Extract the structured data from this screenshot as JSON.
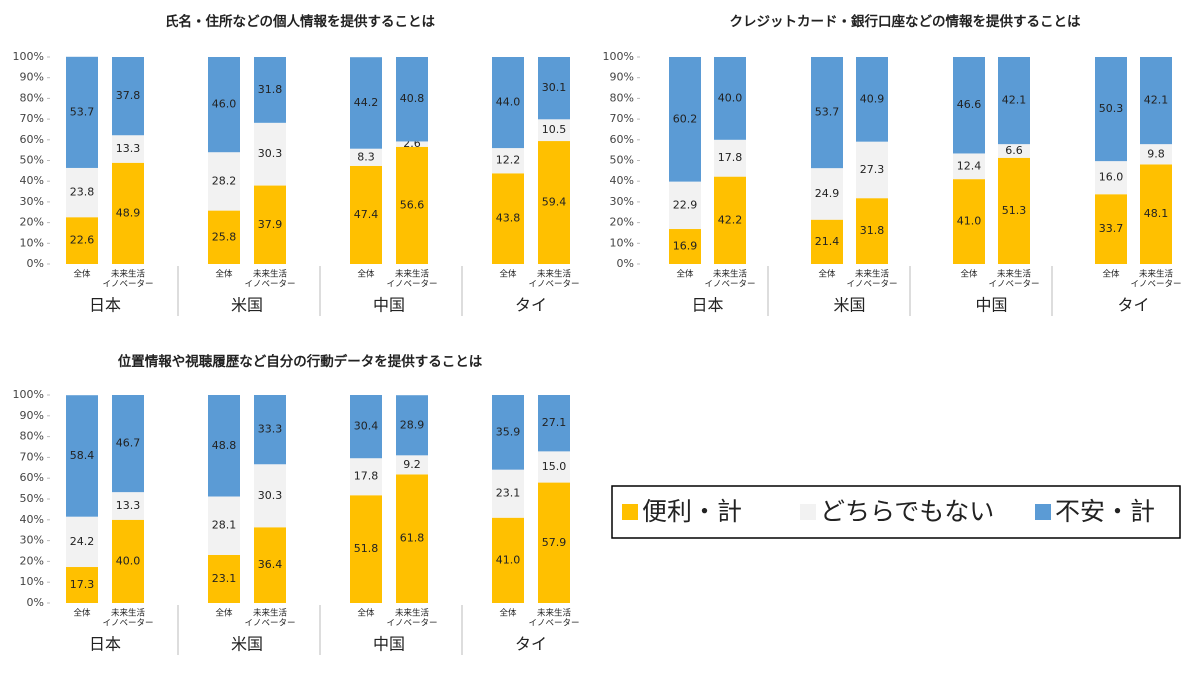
{
  "legend": {
    "series": [
      {
        "name": "便利・計",
        "color": "#ffc000"
      },
      {
        "name": "どちらでもない",
        "color": "#f2f2f2"
      },
      {
        "name": "不安・計",
        "color": "#5b9bd5"
      }
    ]
  },
  "chart_data": [
    {
      "type": "bar",
      "stacked": true,
      "title": "氏名・住所などの個人情報を提供することは",
      "groups": [
        "日本",
        "米国",
        "中国",
        "タイ"
      ],
      "categories": [
        [
          "全体"
        ],
        [
          "未来生活",
          "イノベーター"
        ],
        [
          "全体"
        ],
        [
          "未来生活",
          "イノベーター"
        ],
        [
          "全体"
        ],
        [
          "未来生活",
          "イノベーター"
        ],
        [
          "全体"
        ],
        [
          "未来生活",
          "イノベーター"
        ]
      ],
      "ylim": [
        0,
        100
      ],
      "yticks": [
        {
          "value": 0,
          "label": "0%"
        },
        {
          "value": 10,
          "label": "10%"
        },
        {
          "value": 20,
          "label": "20%"
        },
        {
          "value": 30,
          "label": "30%"
        },
        {
          "value": 40,
          "label": "40%"
        },
        {
          "value": 50,
          "label": "50%"
        },
        {
          "value": 60,
          "label": "60%"
        },
        {
          "value": 70,
          "label": "70%"
        },
        {
          "value": 80,
          "label": "80%"
        },
        {
          "value": 90,
          "label": "90%"
        },
        {
          "value": 100,
          "label": "100%"
        }
      ],
      "series": [
        {
          "values": [
            22.6,
            48.9,
            25.8,
            37.9,
            47.4,
            56.6,
            43.8,
            59.4
          ],
          "value_labels": [
            "22.6",
            "48.9",
            "25.8",
            "37.9",
            "47.4",
            "56.6",
            "43.8",
            "59.4"
          ]
        },
        {
          "values": [
            23.8,
            13.3,
            28.2,
            30.3,
            8.3,
            2.6,
            12.2,
            10.5
          ],
          "value_labels": [
            "23.8",
            "13.3",
            "28.2",
            "30.3",
            "8.3",
            "2.6",
            "12.2",
            "10.5"
          ]
        },
        {
          "values": [
            53.7,
            37.8,
            46.0,
            31.8,
            44.2,
            40.8,
            44.0,
            30.1
          ],
          "value_labels": [
            "53.7",
            "37.8",
            "46.0",
            "31.8",
            "44.2",
            "40.8",
            "44.0",
            "30.1"
          ]
        }
      ]
    },
    {
      "type": "bar",
      "stacked": true,
      "title": "クレジットカード・銀行口座などの情報を提供することは",
      "groups": [
        "日本",
        "米国",
        "中国",
        "タイ"
      ],
      "categories": [
        [
          "全体"
        ],
        [
          "未来生活",
          "イノベーター"
        ],
        [
          "全体"
        ],
        [
          "未来生活",
          "イノベーター"
        ],
        [
          "全体"
        ],
        [
          "未来生活",
          "イノベーター"
        ],
        [
          "全体"
        ],
        [
          "未来生活",
          "イノベーター"
        ]
      ],
      "ylim": [
        0,
        100
      ],
      "yticks": [
        {
          "value": 0,
          "label": "0%"
        },
        {
          "value": 10,
          "label": "10%"
        },
        {
          "value": 20,
          "label": "20%"
        },
        {
          "value": 30,
          "label": "30%"
        },
        {
          "value": 40,
          "label": "40%"
        },
        {
          "value": 50,
          "label": "50%"
        },
        {
          "value": 60,
          "label": "60%"
        },
        {
          "value": 70,
          "label": "70%"
        },
        {
          "value": 80,
          "label": "80%"
        },
        {
          "value": 90,
          "label": "90%"
        },
        {
          "value": 100,
          "label": "100%"
        }
      ],
      "series": [
        {
          "values": [
            16.9,
            42.2,
            21.4,
            31.8,
            41.0,
            51.3,
            33.7,
            48.1
          ],
          "value_labels": [
            "16.9",
            "42.2",
            "21.4",
            "31.8",
            "41.0",
            "51.3",
            "33.7",
            "48.1"
          ]
        },
        {
          "values": [
            22.9,
            17.8,
            24.9,
            27.3,
            12.4,
            6.6,
            16.0,
            9.8
          ],
          "value_labels": [
            "22.9",
            "17.8",
            "24.9",
            "27.3",
            "12.4",
            "6.6",
            "16.0",
            "9.8"
          ]
        },
        {
          "values": [
            60.2,
            40.0,
            53.7,
            40.9,
            46.6,
            42.1,
            50.3,
            42.1
          ],
          "value_labels": [
            "60.2",
            "40.0",
            "53.7",
            "40.9",
            "46.6",
            "42.1",
            "50.3",
            "42.1"
          ]
        }
      ]
    },
    {
      "type": "bar",
      "stacked": true,
      "title": "位置情報や視聴履歴など自分の行動データを提供することは",
      "groups": [
        "日本",
        "米国",
        "中国",
        "タイ"
      ],
      "categories": [
        [
          "全体"
        ],
        [
          "未来生活",
          "イノベーター"
        ],
        [
          "全体"
        ],
        [
          "未来生活",
          "イノベーター"
        ],
        [
          "全体"
        ],
        [
          "未来生活",
          "イノベーター"
        ],
        [
          "全体"
        ],
        [
          "未来生活",
          "イノベーター"
        ]
      ],
      "ylim": [
        0,
        100
      ],
      "yticks": [
        {
          "value": 0,
          "label": "0%"
        },
        {
          "value": 10,
          "label": "10%"
        },
        {
          "value": 20,
          "label": "20%"
        },
        {
          "value": 30,
          "label": "30%"
        },
        {
          "value": 40,
          "label": "40%"
        },
        {
          "value": 50,
          "label": "50%"
        },
        {
          "value": 60,
          "label": "60%"
        },
        {
          "value": 70,
          "label": "70%"
        },
        {
          "value": 80,
          "label": "80%"
        },
        {
          "value": 90,
          "label": "90%"
        },
        {
          "value": 100,
          "label": "100%"
        }
      ],
      "series": [
        {
          "values": [
            17.3,
            40.0,
            23.1,
            36.4,
            51.8,
            61.8,
            41.0,
            57.9
          ],
          "value_labels": [
            "17.3",
            "40.0",
            "23.1",
            "36.4",
            "51.8",
            "61.8",
            "41.0",
            "57.9"
          ]
        },
        {
          "values": [
            24.2,
            13.3,
            28.1,
            30.3,
            17.8,
            9.2,
            23.1,
            15.0
          ],
          "value_labels": [
            "24.2",
            "13.3",
            "28.1",
            "30.3",
            "17.8",
            "9.2",
            "23.1",
            "15.0"
          ]
        },
        {
          "values": [
            58.4,
            46.7,
            48.8,
            33.3,
            30.4,
            28.9,
            35.9,
            27.1
          ],
          "value_labels": [
            "58.4",
            "46.7",
            "48.8",
            "33.3",
            "30.4",
            "28.9",
            "35.9",
            "27.1"
          ]
        }
      ]
    }
  ]
}
